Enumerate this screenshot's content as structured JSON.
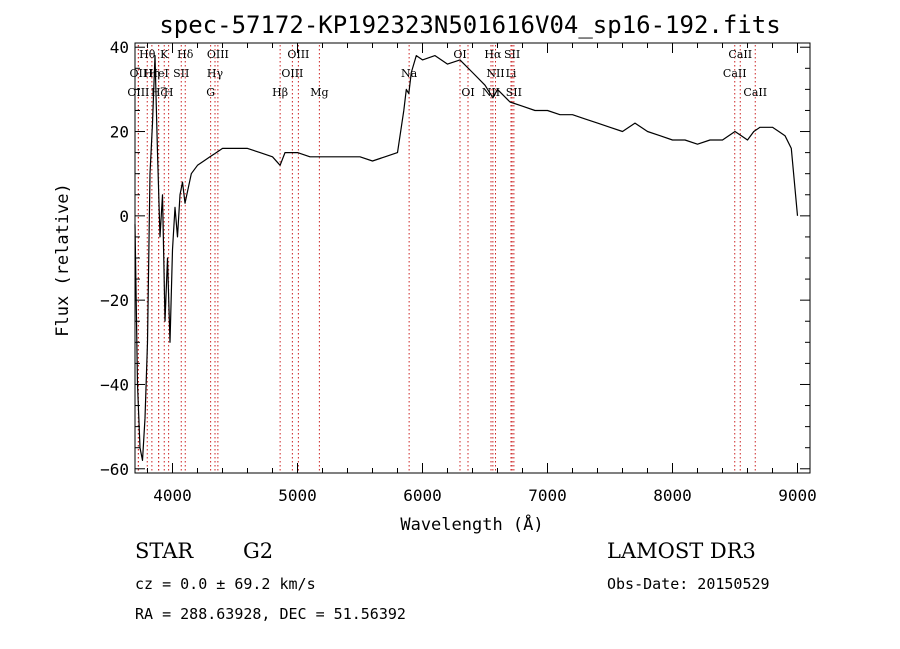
{
  "title": "spec-57172-KP192323N501616V04_sp16-192.fits",
  "info": {
    "class": "STAR",
    "subclass": "G2",
    "survey": "LAMOST DR3",
    "cz": "cz = 0.0 ± 69.2 km/s",
    "obs_date": "Obs-Date: 20150529",
    "coords": "RA = 288.63928, DEC =  51.56392"
  },
  "colors": {
    "spectrum": "#000000",
    "lines": "#cc2222",
    "axes": "#000000"
  },
  "chart_data": {
    "type": "line",
    "title": "spec-57172-KP192323N501616V04_sp16-192.fits",
    "xlabel": "Wavelength (Å)",
    "ylabel": "Flux (relative)",
    "xlim": [
      3700,
      9100
    ],
    "ylim": [
      -61,
      41
    ],
    "xticks": [
      4000,
      5000,
      6000,
      7000,
      8000,
      9000
    ],
    "yticks": [
      -60,
      -40,
      -20,
      0,
      20,
      40
    ],
    "grid": false,
    "series": [
      {
        "x": [
          3700,
          3720,
          3740,
          3760,
          3780,
          3800,
          3820,
          3840,
          3860,
          3880,
          3900,
          3920,
          3940,
          3960,
          3980,
          4000,
          4020,
          4040,
          4060,
          4080,
          4100,
          4150,
          4200,
          4250,
          4300,
          4350,
          4400,
          4500,
          4600,
          4700,
          4800,
          4861,
          4900,
          5000,
          5100,
          5200,
          5300,
          5400,
          5500,
          5600,
          5700,
          5800,
          5850,
          5870,
          5890,
          5910,
          5950,
          6000,
          6100,
          6200,
          6300,
          6400,
          6500,
          6563,
          6600,
          6700,
          6800,
          6900,
          7000,
          7100,
          7200,
          7300,
          7400,
          7500,
          7600,
          7700,
          7800,
          7900,
          8000,
          8100,
          8200,
          8300,
          8400,
          8500,
          8550,
          8600,
          8650,
          8700,
          8800,
          8850,
          8900,
          8950,
          9000
        ],
        "y": [
          -2,
          -40,
          -55,
          -58,
          -48,
          -30,
          10,
          22,
          38,
          15,
          -5,
          5,
          -25,
          -10,
          -30,
          -8,
          2,
          -5,
          5,
          8,
          3,
          10,
          12,
          13,
          14,
          15,
          16,
          16,
          16,
          15,
          14,
          12,
          15,
          15,
          14,
          14,
          14,
          14,
          14,
          13,
          14,
          15,
          25,
          30,
          29,
          34,
          38,
          37,
          38,
          36,
          37,
          34,
          31,
          28,
          30,
          27,
          26,
          25,
          25,
          24,
          24,
          23,
          22,
          21,
          20,
          22,
          20,
          19,
          18,
          18,
          17,
          18,
          18,
          20,
          19,
          18,
          20,
          21,
          21,
          20,
          19,
          16,
          0
        ]
      }
    ],
    "spectral_lines": [
      {
        "label": "OII",
        "x": 3727,
        "row": 1
      },
      {
        "label": "OIII",
        "x": 3727,
        "row": 2
      },
      {
        "label": "Hθ",
        "x": 3798,
        "row": 0
      },
      {
        "label": "Hη",
        "x": 3835,
        "row": 1
      },
      {
        "label": "Hζ",
        "x": 3889,
        "row": 2
      },
      {
        "label": "K",
        "x": 3934,
        "row": 0
      },
      {
        "label": "HeI",
        "x": 3889,
        "row": 1
      },
      {
        "label": "H",
        "x": 3969,
        "row": 2
      },
      {
        "label": "Hδ",
        "x": 4102,
        "row": 0
      },
      {
        "label": "SII",
        "x": 4070,
        "row": 1
      },
      {
        "label": "OIII",
        "x": 4363,
        "row": 0
      },
      {
        "label": "Hγ",
        "x": 4340,
        "row": 1
      },
      {
        "label": "G",
        "x": 4305,
        "row": 2
      },
      {
        "label": "Hβ",
        "x": 4861,
        "row": 2
      },
      {
        "label": "OIII",
        "x": 5007,
        "row": 0
      },
      {
        "label": "OIII",
        "x": 4959,
        "row": 1
      },
      {
        "label": "Mg",
        "x": 5175,
        "row": 2
      },
      {
        "label": "Na",
        "x": 5893,
        "row": 1
      },
      {
        "label": "OI",
        "x": 6300,
        "row": 0
      },
      {
        "label": "OI",
        "x": 6364,
        "row": 2
      },
      {
        "label": "Hα",
        "x": 6563,
        "row": 0
      },
      {
        "label": "NII",
        "x": 6584,
        "row": 1
      },
      {
        "label": "NII",
        "x": 6548,
        "row": 2
      },
      {
        "label": "SII",
        "x": 6717,
        "row": 0
      },
      {
        "label": "Li",
        "x": 6708,
        "row": 1
      },
      {
        "label": "SII",
        "x": 6731,
        "row": 2
      },
      {
        "label": "CaII",
        "x": 8542,
        "row": 0
      },
      {
        "label": "CaII",
        "x": 8498,
        "row": 1
      },
      {
        "label": "CaII",
        "x": 8662,
        "row": 2
      }
    ]
  }
}
